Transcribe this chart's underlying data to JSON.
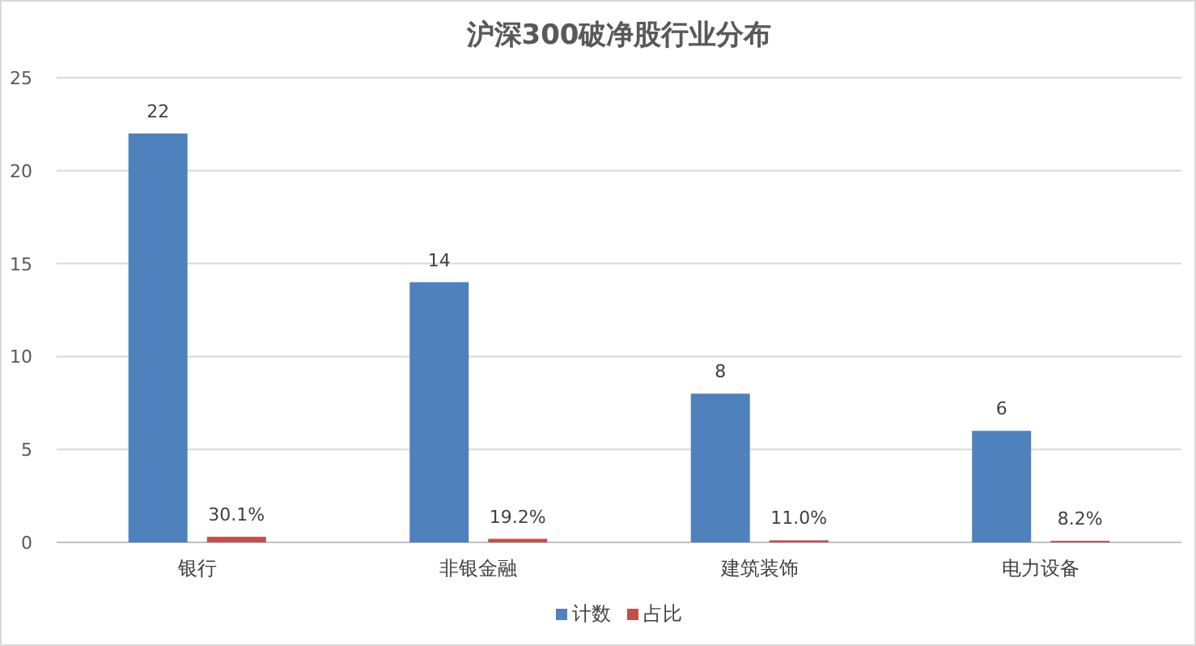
{
  "chart_data": {
    "type": "bar",
    "title": "沪深300破净股行业分布",
    "categories": [
      "银行",
      "非银金融",
      "建筑装饰",
      "电力设备"
    ],
    "series": [
      {
        "name": "计数",
        "color": "#4f81bd",
        "values": [
          22,
          14,
          8,
          6
        ],
        "value_labels": [
          "22",
          "14",
          "8",
          "6"
        ]
      },
      {
        "name": "占比",
        "color": "#c0504d",
        "values": [
          0.301,
          0.192,
          0.11,
          0.082
        ],
        "value_labels": [
          "30.1%",
          "19.2%",
          "11.0%",
          "8.2%"
        ]
      }
    ],
    "ylim": [
      0,
      25
    ],
    "yticks": [
      0,
      5,
      10,
      15,
      20,
      25
    ],
    "grid": "y",
    "legend": "bottom"
  }
}
